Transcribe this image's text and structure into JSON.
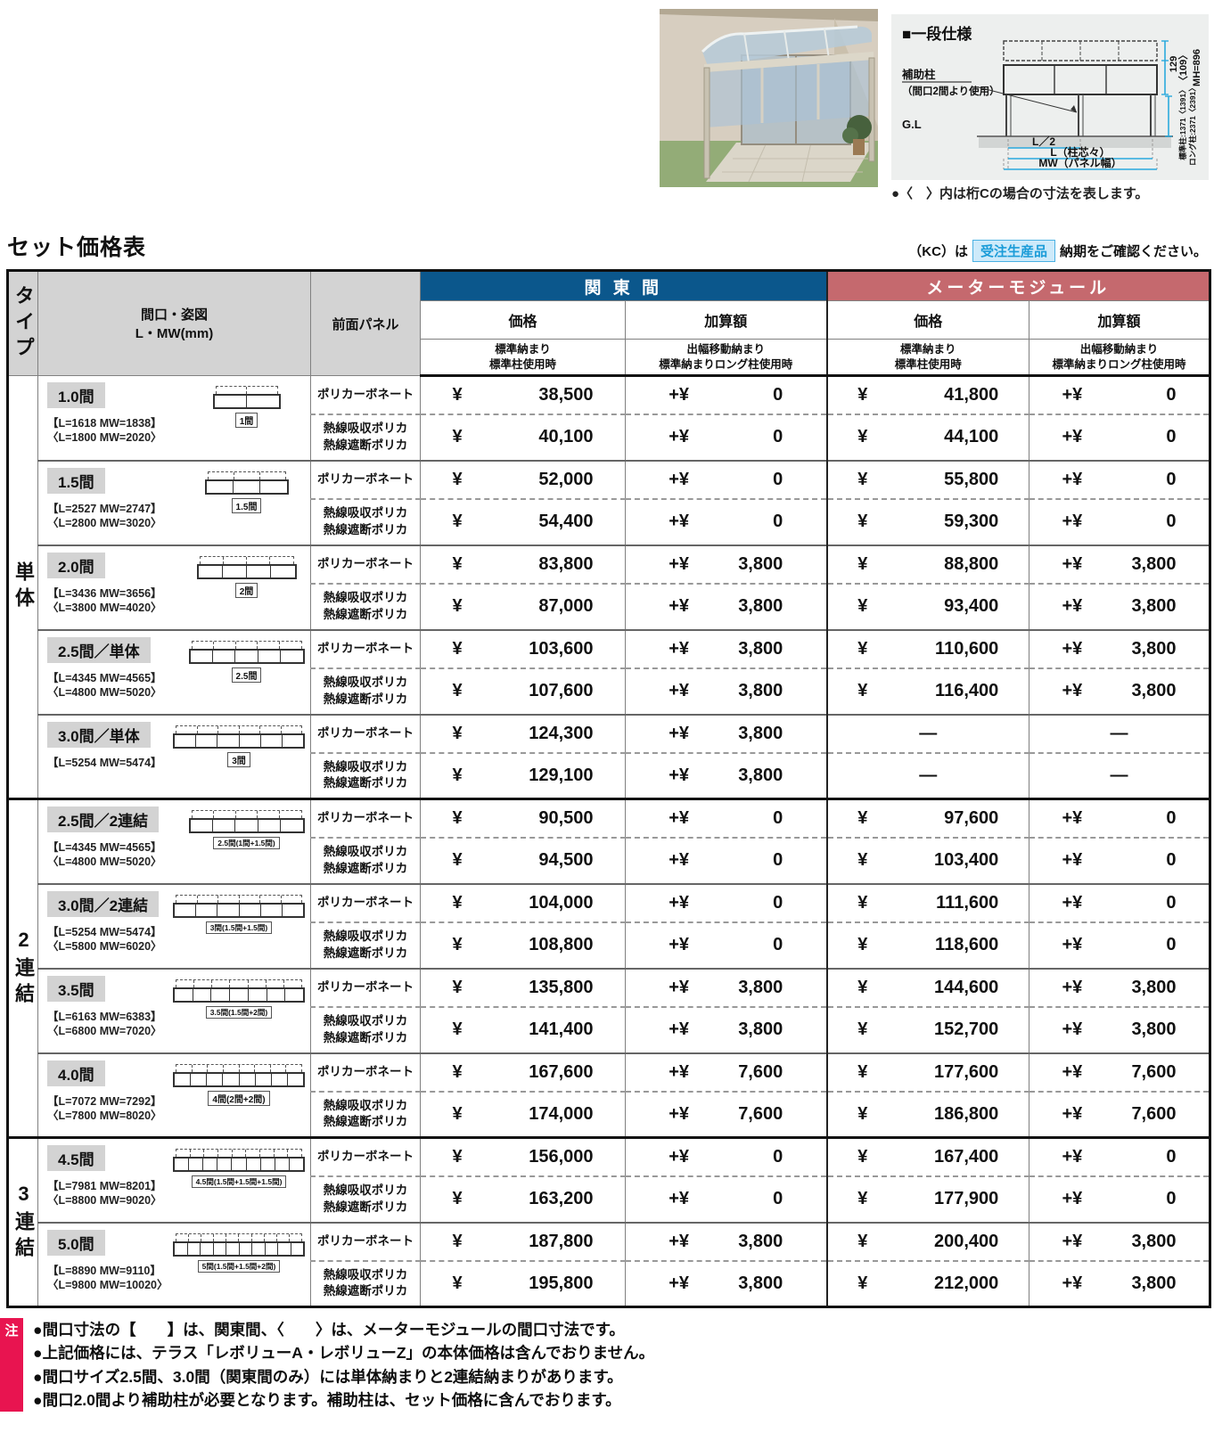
{
  "page": {
    "title": "セット価格表"
  },
  "kc_note": {
    "prefix": "（KC）は",
    "tag": "受注生産品",
    "suffix": "納期をご確認ください。"
  },
  "diagram": {
    "title": "■一段仕様",
    "caption": "●〈　〉内は桁Cの場合の寸法を表します。",
    "aux_label": "補助柱",
    "aux_sub": "（間口2間より使用）",
    "gl": "G.L",
    "dim_l2": "L／2",
    "dim_l": "L（柱芯々）",
    "dim_mw": "MW（パネル幅）",
    "dim_129": "129",
    "dim_109": "〈109〉",
    "dim_mh": "MH=896",
    "dim_std_post": "標準柱:1371〈1391〉",
    "dim_long_post": "ロング柱:2371〈2391〉"
  },
  "table": {
    "headers": {
      "type": "タイプ",
      "spec_line1": "間口・姿図",
      "spec_line2": "L・MW(mm)",
      "panel": "前面パネル",
      "kanto": "関 東 間",
      "meter": "メーターモジュール",
      "price": "価格",
      "add": "加算額",
      "std_line1": "標準納まり",
      "std_line2": "標準柱使用時",
      "move_line1": "出幅移動納まり",
      "move_line2": "標準納まりロング柱使用時"
    },
    "currency": "¥",
    "plus": "+¥",
    "groups": [
      {
        "type": "単体",
        "rows": [
          {
            "size": "1.0間",
            "dims": [
              "【L=1618 MW=1838】",
              "〈L=1800 MW=2020〉"
            ],
            "schem_label": "1間",
            "units": 2,
            "subs": [
              {
                "panel": [
                  "ポリカーボネート"
                ],
                "kanto_price": "38,500",
                "kanto_add": "0",
                "meter_price": "41,800",
                "meter_add": "0"
              },
              {
                "panel": [
                  "熱線吸収ポリカ",
                  "熱線遮断ポリカ"
                ],
                "kanto_price": "40,100",
                "kanto_add": "0",
                "meter_price": "44,100",
                "meter_add": "0"
              }
            ]
          },
          {
            "size": "1.5間",
            "dims": [
              "【L=2527 MW=2747】",
              "〈L=2800 MW=3020〉"
            ],
            "schem_label": "1.5間",
            "units": 3,
            "subs": [
              {
                "panel": [
                  "ポリカーボネート"
                ],
                "kanto_price": "52,000",
                "kanto_add": "0",
                "meter_price": "55,800",
                "meter_add": "0"
              },
              {
                "panel": [
                  "熱線吸収ポリカ",
                  "熱線遮断ポリカ"
                ],
                "kanto_price": "54,400",
                "kanto_add": "0",
                "meter_price": "59,300",
                "meter_add": "0"
              }
            ]
          },
          {
            "size": "2.0間",
            "dims": [
              "【L=3436 MW=3656】",
              "〈L=3800 MW=4020〉"
            ],
            "schem_label": "2間",
            "units": 4,
            "subs": [
              {
                "panel": [
                  "ポリカーボネート"
                ],
                "kanto_price": "83,800",
                "kanto_add": "3,800",
                "meter_price": "88,800",
                "meter_add": "3,800"
              },
              {
                "panel": [
                  "熱線吸収ポリカ",
                  "熱線遮断ポリカ"
                ],
                "kanto_price": "87,000",
                "kanto_add": "3,800",
                "meter_price": "93,400",
                "meter_add": "3,800"
              }
            ]
          },
          {
            "size": "2.5間／単体",
            "dims": [
              "【L=4345 MW=4565】",
              "〈L=4800 MW=5020〉"
            ],
            "schem_label": "2.5間",
            "units": 5,
            "subs": [
              {
                "panel": [
                  "ポリカーボネート"
                ],
                "kanto_price": "103,600",
                "kanto_add": "3,800",
                "meter_price": "110,600",
                "meter_add": "3,800"
              },
              {
                "panel": [
                  "熱線吸収ポリカ",
                  "熱線遮断ポリカ"
                ],
                "kanto_price": "107,600",
                "kanto_add": "3,800",
                "meter_price": "116,400",
                "meter_add": "3,800"
              }
            ]
          },
          {
            "size": "3.0間／単体",
            "dims": [
              "【L=5254 MW=5474】"
            ],
            "schem_label": "3間",
            "units": 6,
            "subs": [
              {
                "panel": [
                  "ポリカーボネート"
                ],
                "kanto_price": "124,300",
                "kanto_add": "3,800",
                "meter_price": "—",
                "meter_add": "—"
              },
              {
                "panel": [
                  "熱線吸収ポリカ",
                  "熱線遮断ポリカ"
                ],
                "kanto_price": "129,100",
                "kanto_add": "3,800",
                "meter_price": "—",
                "meter_add": "—"
              }
            ]
          }
        ]
      },
      {
        "type": "2連結",
        "rows": [
          {
            "size": "2.5間／2連結",
            "dims": [
              "【L=4345 MW=4565】",
              "〈L=4800 MW=5020〉"
            ],
            "schem_label": "2.5間(1間+1.5間)",
            "units": 5,
            "subs": [
              {
                "panel": [
                  "ポリカーボネート"
                ],
                "kanto_price": "90,500",
                "kanto_add": "0",
                "meter_price": "97,600",
                "meter_add": "0"
              },
              {
                "panel": [
                  "熱線吸収ポリカ",
                  "熱線遮断ポリカ"
                ],
                "kanto_price": "94,500",
                "kanto_add": "0",
                "meter_price": "103,400",
                "meter_add": "0"
              }
            ]
          },
          {
            "size": "3.0間／2連結",
            "dims": [
              "【L=5254 MW=5474】",
              "〈L=5800 MW=6020〉"
            ],
            "schem_label": "3間(1.5間+1.5間)",
            "units": 6,
            "subs": [
              {
                "panel": [
                  "ポリカーボネート"
                ],
                "kanto_price": "104,000",
                "kanto_add": "0",
                "meter_price": "111,600",
                "meter_add": "0"
              },
              {
                "panel": [
                  "熱線吸収ポリカ",
                  "熱線遮断ポリカ"
                ],
                "kanto_price": "108,800",
                "kanto_add": "0",
                "meter_price": "118,600",
                "meter_add": "0"
              }
            ]
          },
          {
            "size": "3.5間",
            "dims": [
              "【L=6163 MW=6383】",
              "〈L=6800 MW=7020〉"
            ],
            "schem_label": "3.5間(1.5間+2間)",
            "units": 7,
            "subs": [
              {
                "panel": [
                  "ポリカーボネート"
                ],
                "kanto_price": "135,800",
                "kanto_add": "3,800",
                "meter_price": "144,600",
                "meter_add": "3,800"
              },
              {
                "panel": [
                  "熱線吸収ポリカ",
                  "熱線遮断ポリカ"
                ],
                "kanto_price": "141,400",
                "kanto_add": "3,800",
                "meter_price": "152,700",
                "meter_add": "3,800"
              }
            ]
          },
          {
            "size": "4.0間",
            "dims": [
              "【L=7072 MW=7292】",
              "〈L=7800 MW=8020〉"
            ],
            "schem_label": "4間(2間+2間)",
            "units": 8,
            "subs": [
              {
                "panel": [
                  "ポリカーボネート"
                ],
                "kanto_price": "167,600",
                "kanto_add": "7,600",
                "meter_price": "177,600",
                "meter_add": "7,600"
              },
              {
                "panel": [
                  "熱線吸収ポリカ",
                  "熱線遮断ポリカ"
                ],
                "kanto_price": "174,000",
                "kanto_add": "7,600",
                "meter_price": "186,800",
                "meter_add": "7,600"
              }
            ]
          }
        ]
      },
      {
        "type": "3連結",
        "rows": [
          {
            "size": "4.5間",
            "dims": [
              "【L=7981 MW=8201】",
              "〈L=8800 MW=9020〉"
            ],
            "schem_label": "4.5間(1.5間+1.5間+1.5間)",
            "units": 9,
            "subs": [
              {
                "panel": [
                  "ポリカーボネート"
                ],
                "kanto_price": "156,000",
                "kanto_add": "0",
                "meter_price": "167,400",
                "meter_add": "0"
              },
              {
                "panel": [
                  "熱線吸収ポリカ",
                  "熱線遮断ポリカ"
                ],
                "kanto_price": "163,200",
                "kanto_add": "0",
                "meter_price": "177,900",
                "meter_add": "0"
              }
            ]
          },
          {
            "size": "5.0間",
            "dims": [
              "【L=8890 MW=9110】",
              "〈L=9800 MW=10020〉"
            ],
            "schem_label": "5間(1.5間+1.5間+2間)",
            "units": 10,
            "subs": [
              {
                "panel": [
                  "ポリカーボネート"
                ],
                "kanto_price": "187,800",
                "kanto_add": "3,800",
                "meter_price": "200,400",
                "meter_add": "3,800"
              },
              {
                "panel": [
                  "熱線吸収ポリカ",
                  "熱線遮断ポリカ"
                ],
                "kanto_price": "195,800",
                "kanto_add": "3,800",
                "meter_price": "212,000",
                "meter_add": "3,800"
              }
            ]
          }
        ]
      }
    ]
  },
  "notes": {
    "badge": "注",
    "items": [
      "●間口寸法の【　　】は、関東間、〈　　〉は、メーターモジュールの間口寸法です。",
      "●上記価格には、テラス「レボリューA・レボリューZ」の本体価格は含んでおりません。",
      "●間口サイズ2.5間、3.0間（関東間のみ）には単体納まりと2連結納まりがあります。",
      "●間口2.0間より補助柱が必要となります。補助柱は、セット価格に含んでおります。"
    ]
  }
}
